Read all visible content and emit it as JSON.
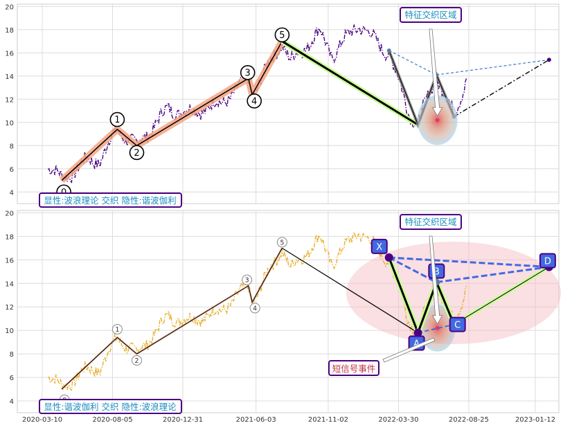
{
  "chart_data": [
    {
      "type": "line",
      "panel": "top",
      "ylim": [
        3,
        20.2
      ],
      "y_ticks": [
        "4",
        "6",
        "8",
        "10",
        "12",
        "14",
        "16",
        "18",
        "20"
      ],
      "y_tick_values": [
        4,
        6,
        8,
        10,
        12,
        14,
        16,
        18,
        20
      ],
      "grid": true,
      "colors": {
        "price": "#4b0082",
        "wave": "#f4a582",
        "cycle": "#ccff99"
      },
      "wave_points": [
        {
          "label": "0",
          "x": "2020-04-20",
          "y": 5.0
        },
        {
          "label": "1",
          "x": "2020-08-15",
          "y": 9.4
        },
        {
          "label": "2",
          "x": "2020-09-25",
          "y": 8.0
        },
        {
          "label": "3",
          "x": "2021-05-18",
          "y": 13.8
        },
        {
          "label": "4",
          "x": "2021-05-26",
          "y": 12.4
        },
        {
          "label": "5",
          "x": "2021-07-28",
          "y": 17.0
        }
      ],
      "harmonic_points": [
        {
          "x": "2022-03-10",
          "y": 16.2
        },
        {
          "x": "2022-05-10",
          "y": 9.8
        },
        {
          "x": "2022-06-18",
          "y": 14.1
        },
        {
          "x": "2022-07-25",
          "y": 10.5
        },
        {
          "x": "2023-02-10",
          "y": 15.4
        }
      ],
      "annotations": {
        "feature_zone": "特征交织区域",
        "caption": "显性:波浪理论 交织 隐性:谐波伽利"
      }
    },
    {
      "type": "line",
      "panel": "bottom",
      "ylim": [
        3,
        20.2
      ],
      "y_ticks": [
        "4",
        "6",
        "8",
        "10",
        "12",
        "14",
        "16",
        "18",
        "20"
      ],
      "y_tick_values": [
        4,
        6,
        8,
        10,
        12,
        14,
        16,
        18,
        20
      ],
      "x_ticks": [
        "2020-03-10",
        "2020-08-05",
        "2020-12-31",
        "2021-06-03",
        "2021-11-02",
        "2022-03-30",
        "2022-08-25",
        "2023-01-12"
      ],
      "grid": true,
      "colors": {
        "price": "#e8b030",
        "pattern": "#4169e1",
        "ellipse": "#f5b7c0"
      },
      "wave_points": [
        {
          "label": "0",
          "x": "2020-04-20",
          "y": 5.0
        },
        {
          "label": "1",
          "x": "2020-08-15",
          "y": 9.4
        },
        {
          "label": "2",
          "x": "2020-09-25",
          "y": 8.0
        },
        {
          "label": "3",
          "x": "2021-05-18",
          "y": 13.8
        },
        {
          "label": "4",
          "x": "2021-05-26",
          "y": 12.4
        },
        {
          "label": "5",
          "x": "2021-07-28",
          "y": 17.0
        }
      ],
      "harmonic_points": [
        {
          "label": "X",
          "x": "2022-03-10",
          "y": 16.2
        },
        {
          "label": "A",
          "x": "2022-05-10",
          "y": 9.8
        },
        {
          "label": "B",
          "x": "2022-06-18",
          "y": 14.1
        },
        {
          "label": "C",
          "x": "2022-07-25",
          "y": 10.5
        },
        {
          "label": "D",
          "x": "2023-02-10",
          "y": 15.4
        }
      ],
      "annotations": {
        "feature_zone": "特征交织区域",
        "short_signal": "短信号事件",
        "caption": "显性:谐波伽利 交织 隐性:波浪理论"
      }
    }
  ]
}
